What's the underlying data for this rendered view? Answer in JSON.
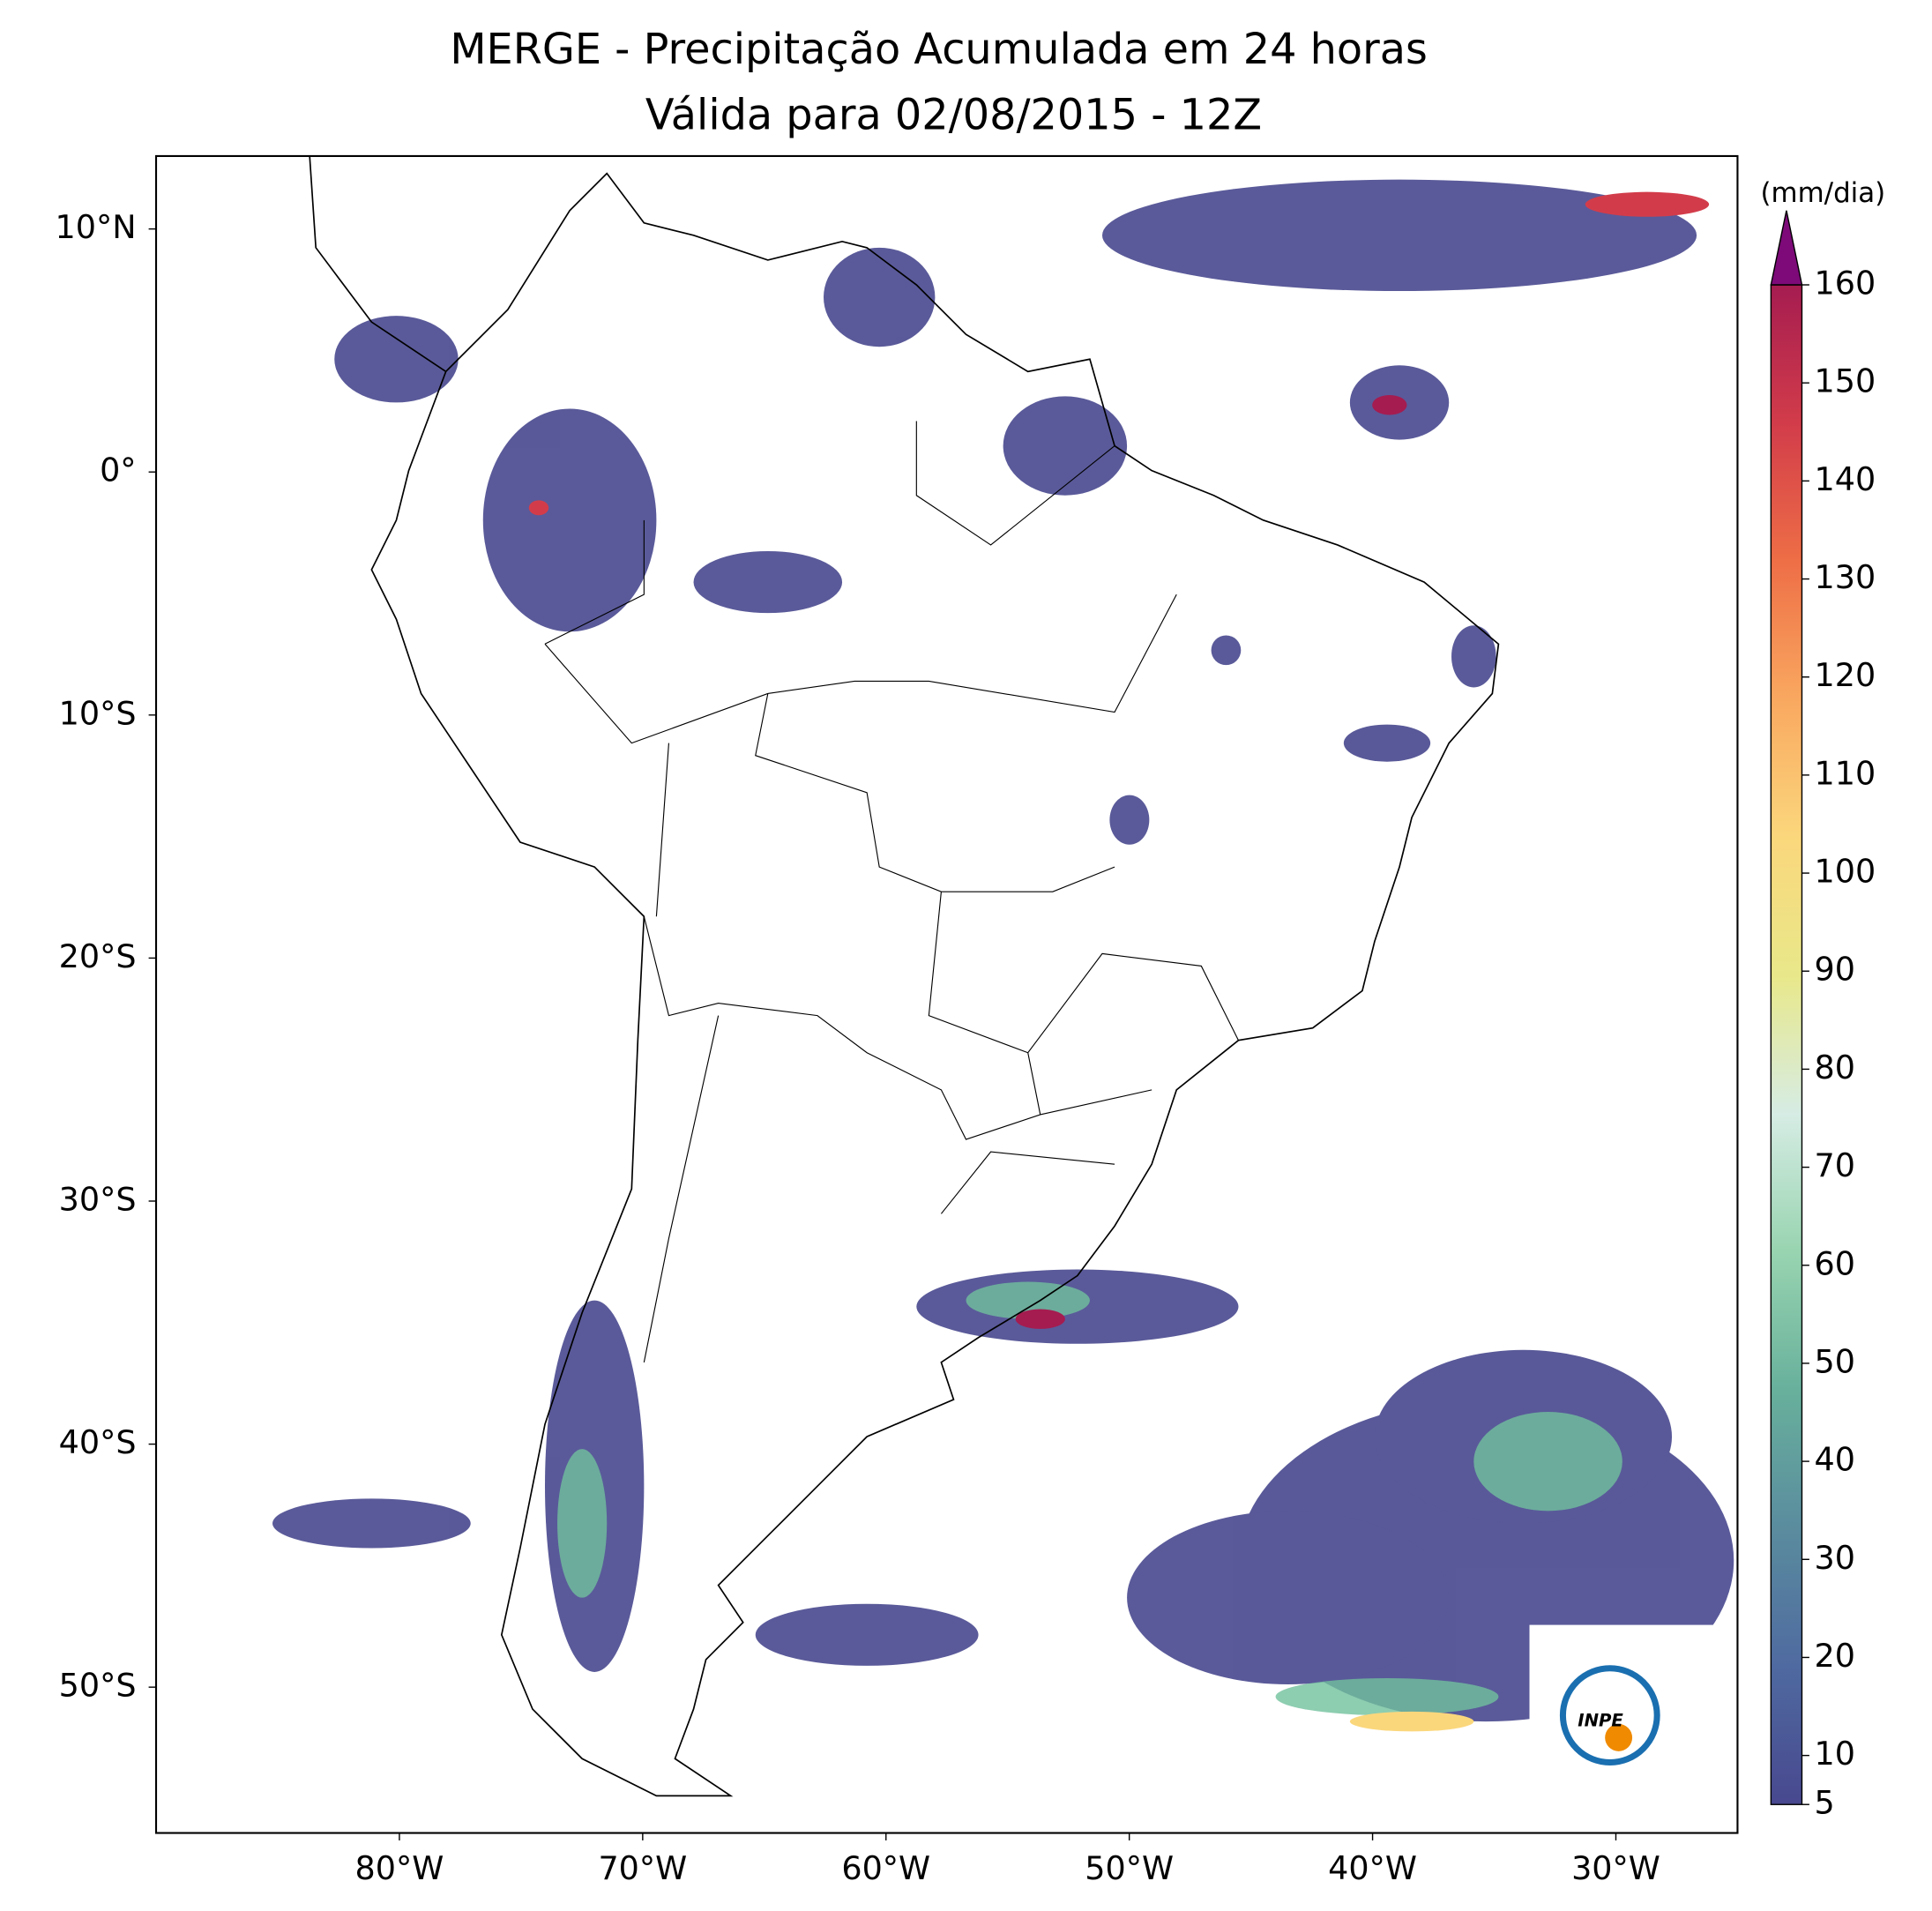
{
  "title": [
    "MERGE - Precipitação Acumulada em 24 horas",
    "Válida para 02/08/2015 - 12Z"
  ],
  "map": {
    "xlim": [
      -90,
      -25
    ],
    "ylim": [
      -56,
      13
    ],
    "xticks": [
      {
        "value": -80,
        "label": "80°W"
      },
      {
        "value": -70,
        "label": "70°W"
      },
      {
        "value": -60,
        "label": "60°W"
      },
      {
        "value": -50,
        "label": "50°W"
      },
      {
        "value": -40,
        "label": "40°W"
      },
      {
        "value": -30,
        "label": "30°W"
      }
    ],
    "yticks": [
      {
        "value": 10,
        "label": "10°N"
      },
      {
        "value": 0,
        "label": "0°"
      },
      {
        "value": -10,
        "label": "10°S"
      },
      {
        "value": -20,
        "label": "20°S"
      },
      {
        "value": -30,
        "label": "30°S"
      },
      {
        "value": -40,
        "label": "40°S"
      },
      {
        "value": -50,
        "label": "50°S"
      }
    ]
  },
  "colorbar": {
    "label": "(mm/dia)",
    "lim": [
      5,
      160
    ],
    "ticks": [
      5,
      10,
      20,
      30,
      40,
      50,
      60,
      70,
      80,
      90,
      100,
      110,
      120,
      130,
      140,
      150,
      160
    ],
    "colors": [
      "#48488f",
      "#4f6aa0",
      "#5a8c9e",
      "#68b09c",
      "#98d4b0",
      "#d6ece4",
      "#e8e88a",
      "#fbd77c",
      "#f9a860",
      "#ee6e46",
      "#d23c4a",
      "#a51c50"
    ],
    "extend_color": "#7d0a78"
  },
  "logo": "INPE"
}
